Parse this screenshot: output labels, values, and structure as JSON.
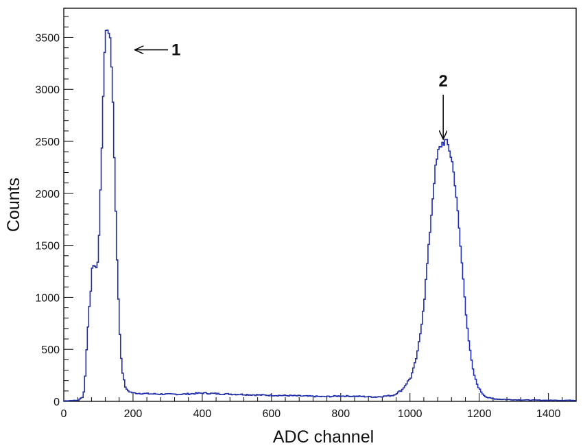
{
  "chart_data": {
    "type": "line",
    "xlabel": "ADC channel",
    "ylabel": "Counts",
    "xlim": [
      0,
      1480
    ],
    "ylim": [
      0,
      3780
    ],
    "x_ticks": [
      0,
      200,
      400,
      600,
      800,
      1000,
      1200,
      1400
    ],
    "y_ticks": [
      0,
      500,
      1000,
      1500,
      2000,
      2500,
      3000,
      3500
    ],
    "x_tick_labels": [
      "0",
      "200",
      "400",
      "600",
      "800",
      "1000",
      "1200",
      "1400"
    ],
    "y_tick_labels": [
      "0",
      "500",
      "1000",
      "1500",
      "2000",
      "2500",
      "3000",
      "3500"
    ],
    "grid": false,
    "line_color": "#1f2ca8",
    "series": [
      {
        "x": [
          0,
          40,
          55,
          60,
          65,
          70,
          75,
          80,
          85,
          90,
          95,
          100,
          105,
          110,
          115,
          120,
          125,
          130,
          135,
          140,
          145,
          150,
          155,
          160,
          165,
          170,
          175,
          180,
          190,
          200,
          250,
          300,
          350,
          400,
          450,
          500,
          550,
          600,
          650,
          700,
          750,
          800,
          850,
          900,
          950,
          975,
          1000,
          1010,
          1020,
          1030,
          1040,
          1050,
          1060,
          1070,
          1080,
          1090,
          1100,
          1110,
          1120,
          1130,
          1140,
          1150,
          1160,
          1170,
          1180,
          1190,
          1200,
          1210,
          1220,
          1230,
          1240,
          1260,
          1300,
          1350,
          1400,
          1450,
          1480
        ],
        "y": [
          5,
          10,
          50,
          250,
          550,
          850,
          1000,
          1300,
          1340,
          1230,
          1300,
          1600,
          2100,
          2700,
          3300,
          3550,
          3600,
          3550,
          3300,
          2900,
          2200,
          1600,
          1050,
          650,
          360,
          230,
          150,
          110,
          90,
          80,
          72,
          68,
          70,
          80,
          72,
          68,
          62,
          58,
          55,
          50,
          45,
          52,
          48,
          42,
          58,
          110,
          230,
          330,
          470,
          700,
          1000,
          1400,
          1800,
          2200,
          2400,
          2480,
          2500,
          2450,
          2300,
          2050,
          1650,
          1250,
          850,
          520,
          300,
          180,
          110,
          65,
          40,
          30,
          25,
          20,
          15,
          12,
          10,
          10,
          10
        ]
      }
    ],
    "annotations": [
      {
        "text": "1",
        "x": 130,
        "y": 3380
      },
      {
        "text": "2",
        "x": 1100,
        "y": 2520
      }
    ]
  }
}
